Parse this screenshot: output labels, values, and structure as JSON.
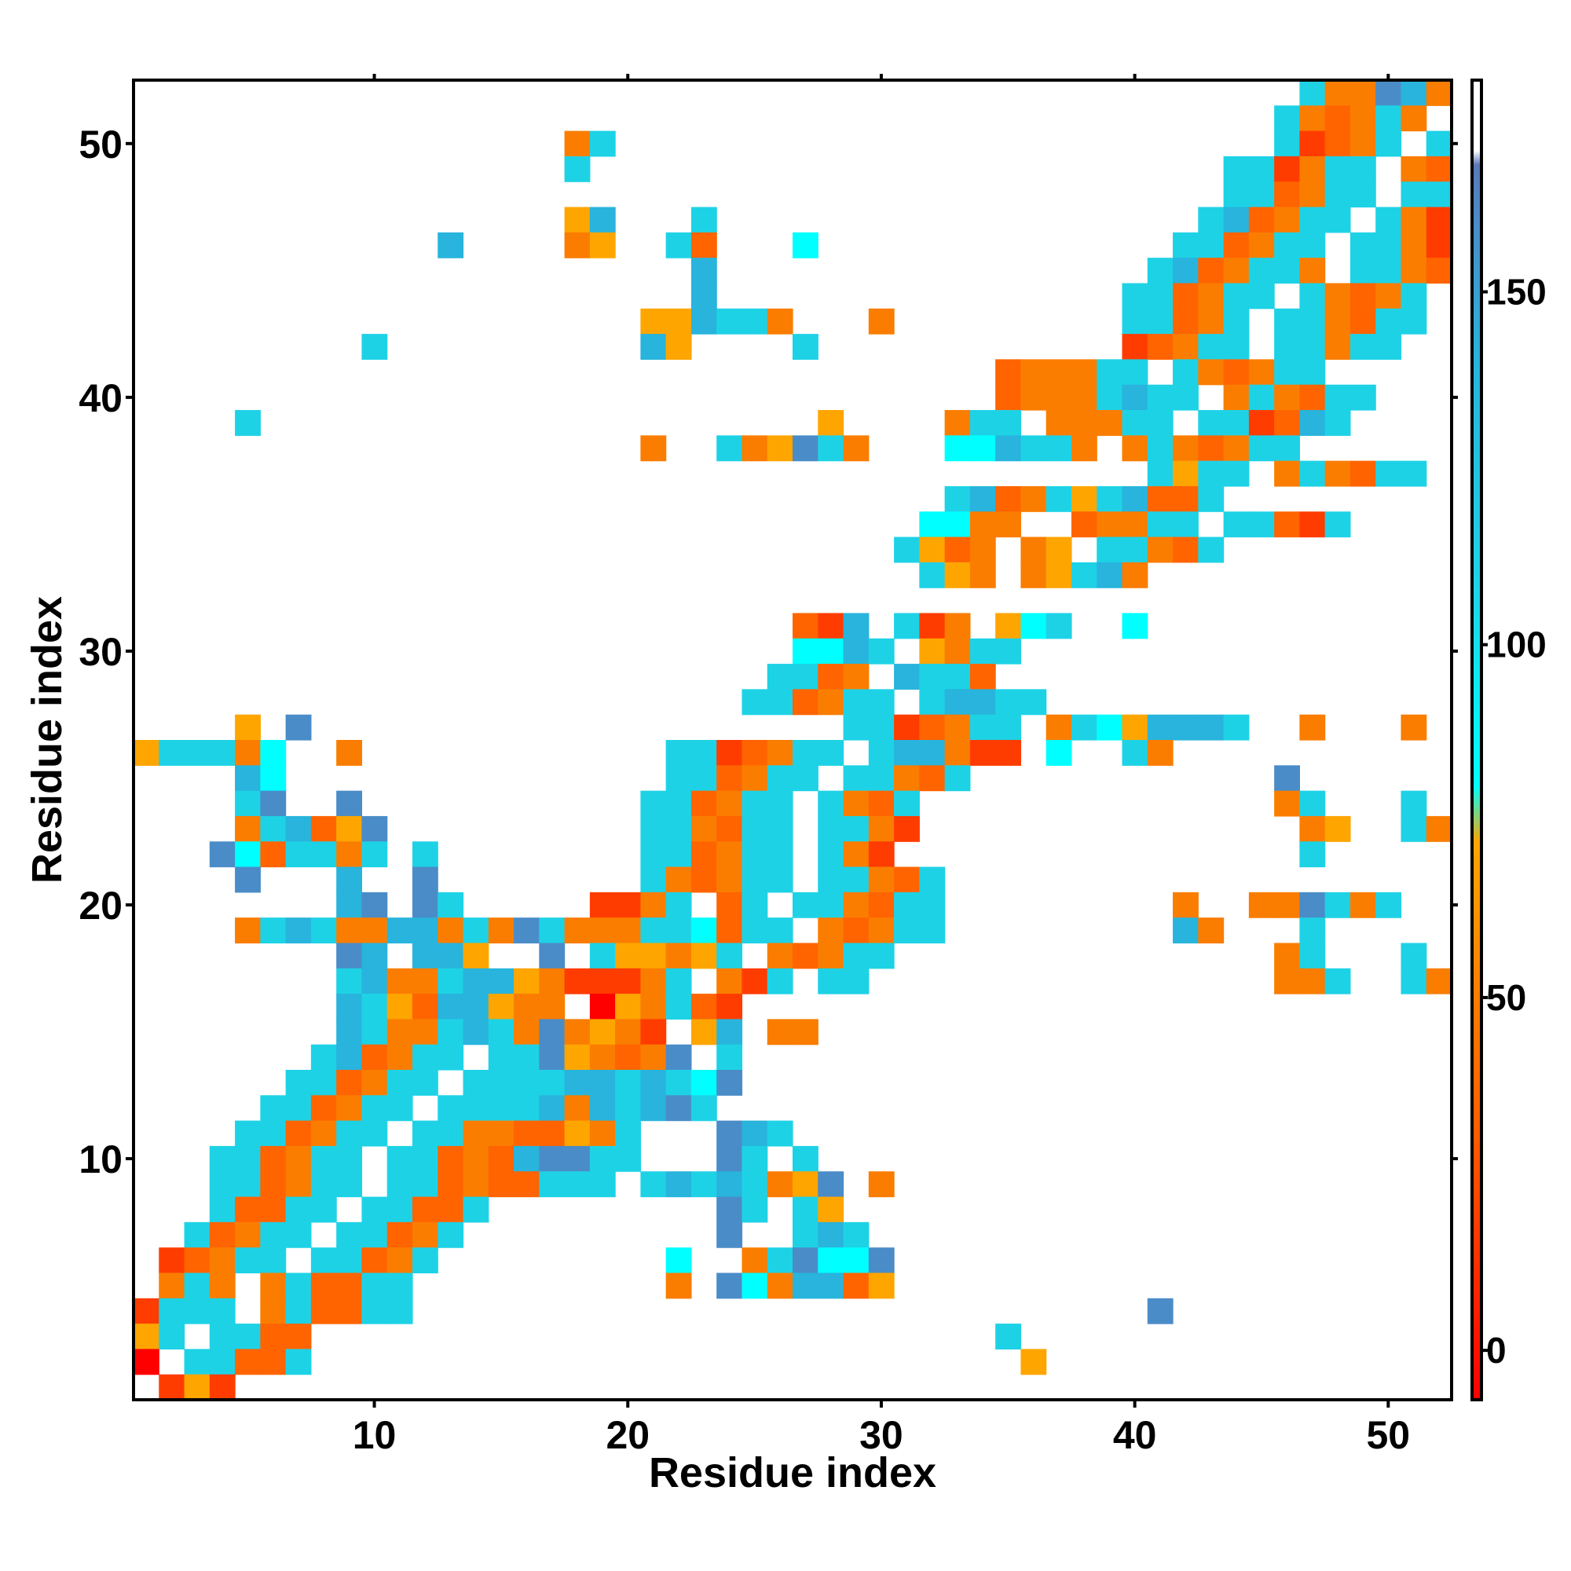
{
  "chart_data": {
    "type": "heatmap",
    "title": "",
    "xlabel": "Residue index",
    "ylabel": "Residue index",
    "xlim": [
      0.5,
      52.5
    ],
    "ylim": [
      0.5,
      52.5
    ],
    "x_ticks": [
      10,
      20,
      30,
      40,
      50
    ],
    "y_ticks": [
      10,
      20,
      30,
      40,
      50
    ],
    "grid": false,
    "colorbar": {
      "range": [
        -7,
        180
      ],
      "ticks": [
        0,
        50,
        100,
        150
      ],
      "stops": [
        {
          "value": -7,
          "color": "#ff0000"
        },
        {
          "value": 30,
          "color": "#ff5a00"
        },
        {
          "value": 50,
          "color": "#fa7d00"
        },
        {
          "value": 72,
          "color": "#ffa500"
        },
        {
          "value": 80,
          "color": "#00ffff"
        },
        {
          "value": 110,
          "color": "#1ed2e6"
        },
        {
          "value": 140,
          "color": "#28b4dc"
        },
        {
          "value": 160,
          "color": "#4a8cc8"
        },
        {
          "value": 168,
          "color": "#5a7ab8"
        },
        {
          "value": 170,
          "color": "#ffffff"
        },
        {
          "value": 180,
          "color": "#ffffff"
        }
      ]
    },
    "color_categories": {
      "r": "#ff0000",
      "R": "#ff3c00",
      "O": "#ff6400",
      "o": "#fa7d00",
      "Y": "#ffa500",
      "c": "#00ffff",
      "C": "#1ed2e6",
      "b": "#28b4dc",
      "B": "#4a8cc8"
    },
    "rows_top_to_bottom_y52_to_y1": [
      "..............................................CooBbo",
      ".............................................CoOoCo.o",
      ".................oC..........................CROoC.Co",
      ".................C.........................CCRoCC.oOo",
      "...........................................CCOoCC.CCoOC",
      ".................Yb...C...................CbOoCC.CoRC.",
      "............b....oY..CO...c..............CCOoCC.CCoRC",
      "......................b.................CbOoCCo.CCoOR.",
      "......................b................CCOoCC.CoOoC..",
      "....................YYbCCo...o.........CCOoC.CCoOCC..",
      ".........C..........bY....C............ROoCC.CCoCC...",
      "..................................OoooCC.CoOoCC....",
      "..................................OoooCbCC.oCoOCC..",
      "....C......................Y....oCC.oooCC.CCRObC....",
      "....................o..CoYBCo...ccbCCo.oCoOoCC....",
      "........................................CYCC.oCoOCC.....",
      "................................CbOoCYCbOOC......",
      "...............................ccoo..OooCC.CCORC.......",
      "..............................CYOo.oY.CCoOC.............",
      "...............................CYo.oYCbo...............",
      ".......................................................",
      "..........................ORb.CRo.YcC..c.....",
      "..........................ccbC.YoCC..............",
      ".........................CCOo.bCCO..............",
      "........................CCOoCC.CbbCC..............",
      "....Y.B.....................CCROoCC.oCcYbbbC..o...o.....",
      "YCCCoc..o............CCROoCC.CbboRR.c..Co............",
      "....bc...............CCOoCC.CCoOC............B.........",
      "....CB..B...........CCOoCC.CoOC..............oC...C...",
      "....oCbOYB..........CCoOCC.CCoR...............oY..Co..c...",
      "...BcOCCoC.C........CCOoCC.CoR................C.......",
      "....B...b..B........CoOoCC.CCoOC..................",
      "........bB.BC.....RRoC.OC.CCoOCC.........o..ooBCoC...",
      "....oCbCoobboCoBCoooCCcOCC.oOoCC.........bo...C......",
      "........Bb.bbY..B.CYYoYC.oOoCC...............oC...C...",
      "........CbooCbbYoRRRoC.oRC.CC................ooC..Co...",
      "........bCYObbYoo.rYoCOR.....................",
      "........bCooCbCoBoYoR.Yb.oo...................",
      ".......CbOoCC.CCBYoOoB.C..................",
      "......CCOoCC.CCCCbbCbCcB.........................",
      ".....CCOoCC.CCCCbobCbBC.........................",
      "....CCOoCC.CCooOOYoC...BbC.........................",
      "...CCOoCC.CCOoObBBCC...BC.C.......................",
      "...CCOoCC.CCOoOOCCC.CbCbCoYB.o...................",
      "...COOCC.CCOOC.........BC.CY.......................",
      "..COoCC.CCOoC..........B..CbC.......................",
      ".ROoCC.CCOoC.........c..oCBccB.....................",
      ".oCo.oCOOCC..........o.BcobbOY.......................",
      "RCCC.oCOOCC.............................B.........................",
      "YC.CCOO...........................C.........................",
      "r.CCOOC............................Y.......................",
      ".RYR.............................................."
    ]
  }
}
